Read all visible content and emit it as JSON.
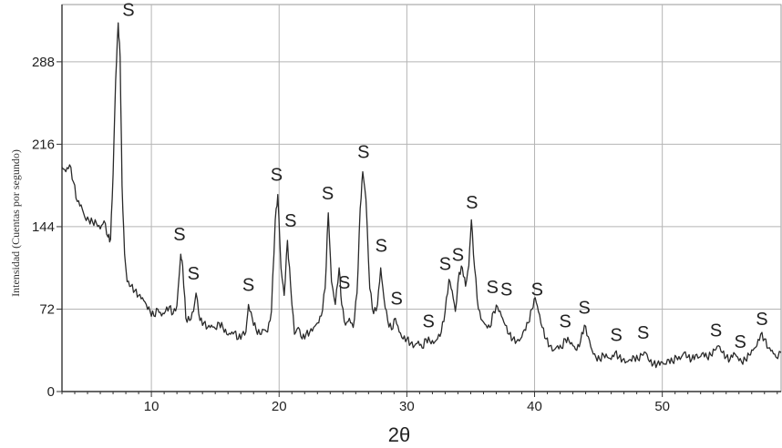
{
  "chart_data": {
    "type": "line",
    "title": "",
    "xlabel": "2θ",
    "ylabel": "Intensidad (Cuentas por segundo)",
    "xlim": [
      3,
      59.3
    ],
    "ylim": [
      0,
      338
    ],
    "grid": true,
    "x_ticks": [
      10,
      20,
      30,
      40,
      50
    ],
    "y_ticks": [
      0,
      72,
      144,
      216,
      288
    ],
    "series": [
      {
        "values": [
          [
            3.0,
            196
          ],
          [
            3.3,
            192
          ],
          [
            3.6,
            198
          ],
          [
            3.9,
            183
          ],
          [
            4.2,
            166
          ],
          [
            4.5,
            163
          ],
          [
            4.8,
            152
          ],
          [
            5.1,
            150
          ],
          [
            5.4,
            148
          ],
          [
            5.7,
            147
          ],
          [
            6.0,
            142
          ],
          [
            6.3,
            149
          ],
          [
            6.6,
            135
          ],
          [
            6.8,
            133
          ],
          [
            7.0,
            190
          ],
          [
            7.2,
            272
          ],
          [
            7.4,
            322
          ],
          [
            7.55,
            292
          ],
          [
            7.7,
            180
          ],
          [
            7.9,
            120
          ],
          [
            8.1,
            96
          ],
          [
            8.4,
            92
          ],
          [
            8.7,
            88
          ],
          [
            9.0,
            84
          ],
          [
            9.3,
            82
          ],
          [
            9.6,
            76
          ],
          [
            9.9,
            70
          ],
          [
            10.2,
            66
          ],
          [
            10.5,
            72
          ],
          [
            10.8,
            66
          ],
          [
            11.1,
            70
          ],
          [
            11.4,
            74
          ],
          [
            11.7,
            68
          ],
          [
            12.0,
            75
          ],
          [
            12.3,
            120
          ],
          [
            12.45,
            110
          ],
          [
            12.7,
            64
          ],
          [
            13.0,
            62
          ],
          [
            13.3,
            70
          ],
          [
            13.5,
            86
          ],
          [
            13.8,
            62
          ],
          [
            14.1,
            60
          ],
          [
            14.4,
            56
          ],
          [
            14.7,
            58
          ],
          [
            15.0,
            55
          ],
          [
            15.3,
            60
          ],
          [
            15.6,
            56
          ],
          [
            15.9,
            50
          ],
          [
            16.2,
            50
          ],
          [
            16.5,
            52
          ],
          [
            16.8,
            46
          ],
          [
            17.1,
            50
          ],
          [
            17.4,
            52
          ],
          [
            17.6,
            76
          ],
          [
            17.9,
            64
          ],
          [
            18.2,
            54
          ],
          [
            18.5,
            50
          ],
          [
            18.8,
            54
          ],
          [
            19.1,
            52
          ],
          [
            19.4,
            70
          ],
          [
            19.7,
            150
          ],
          [
            19.9,
            172
          ],
          [
            20.15,
            108
          ],
          [
            20.4,
            84
          ],
          [
            20.65,
            132
          ],
          [
            20.9,
            92
          ],
          [
            21.2,
            50
          ],
          [
            21.5,
            56
          ],
          [
            21.8,
            46
          ],
          [
            22.1,
            50
          ],
          [
            22.4,
            52
          ],
          [
            22.7,
            56
          ],
          [
            23.0,
            60
          ],
          [
            23.3,
            66
          ],
          [
            23.6,
            90
          ],
          [
            23.85,
            156
          ],
          [
            24.1,
            96
          ],
          [
            24.4,
            76
          ],
          [
            24.7,
            108
          ],
          [
            24.9,
            76
          ],
          [
            25.2,
            58
          ],
          [
            25.5,
            64
          ],
          [
            25.8,
            56
          ],
          [
            26.1,
            86
          ],
          [
            26.35,
            160
          ],
          [
            26.55,
            192
          ],
          [
            26.8,
            168
          ],
          [
            27.1,
            90
          ],
          [
            27.4,
            68
          ],
          [
            27.7,
            76
          ],
          [
            27.95,
            108
          ],
          [
            28.2,
            82
          ],
          [
            28.5,
            62
          ],
          [
            28.8,
            54
          ],
          [
            29.1,
            64
          ],
          [
            29.4,
            52
          ],
          [
            29.7,
            46
          ],
          [
            30.0,
            46
          ],
          [
            30.3,
            42
          ],
          [
            30.6,
            40
          ],
          [
            30.9,
            44
          ],
          [
            31.2,
            38
          ],
          [
            31.5,
            46
          ],
          [
            31.8,
            44
          ],
          [
            32.1,
            42
          ],
          [
            32.4,
            46
          ],
          [
            32.7,
            52
          ],
          [
            33.0,
            70
          ],
          [
            33.3,
            98
          ],
          [
            33.55,
            88
          ],
          [
            33.8,
            70
          ],
          [
            34.1,
            104
          ],
          [
            34.35,
            108
          ],
          [
            34.6,
            92
          ],
          [
            34.85,
            110
          ],
          [
            35.05,
            150
          ],
          [
            35.3,
            108
          ],
          [
            35.6,
            72
          ],
          [
            35.9,
            62
          ],
          [
            36.2,
            58
          ],
          [
            36.5,
            56
          ],
          [
            36.8,
            70
          ],
          [
            37.1,
            74
          ],
          [
            37.4,
            66
          ],
          [
            37.7,
            58
          ],
          [
            38.0,
            50
          ],
          [
            38.3,
            46
          ],
          [
            38.6,
            44
          ],
          [
            38.9,
            46
          ],
          [
            39.2,
            54
          ],
          [
            39.5,
            60
          ],
          [
            39.8,
            72
          ],
          [
            40.05,
            82
          ],
          [
            40.3,
            70
          ],
          [
            40.6,
            56
          ],
          [
            40.9,
            46
          ],
          [
            41.2,
            40
          ],
          [
            41.5,
            36
          ],
          [
            41.8,
            40
          ],
          [
            42.1,
            38
          ],
          [
            42.4,
            46
          ],
          [
            42.7,
            44
          ],
          [
            43.0,
            40
          ],
          [
            43.3,
            36
          ],
          [
            43.6,
            44
          ],
          [
            43.9,
            58
          ],
          [
            44.2,
            48
          ],
          [
            44.5,
            36
          ],
          [
            44.8,
            30
          ],
          [
            45.1,
            28
          ],
          [
            45.4,
            32
          ],
          [
            45.7,
            30
          ],
          [
            46.0,
            28
          ],
          [
            46.3,
            34
          ],
          [
            46.6,
            30
          ],
          [
            46.9,
            28
          ],
          [
            47.2,
            26
          ],
          [
            47.5,
            28
          ],
          [
            47.8,
            30
          ],
          [
            48.1,
            28
          ],
          [
            48.4,
            32
          ],
          [
            48.7,
            34
          ],
          [
            49.0,
            26
          ],
          [
            49.3,
            24
          ],
          [
            49.6,
            24
          ],
          [
            49.9,
            26
          ],
          [
            50.2,
            24
          ],
          [
            50.5,
            28
          ],
          [
            50.8,
            26
          ],
          [
            51.1,
            30
          ],
          [
            51.4,
            28
          ],
          [
            51.7,
            34
          ],
          [
            52.0,
            30
          ],
          [
            52.3,
            28
          ],
          [
            52.6,
            32
          ],
          [
            52.9,
            30
          ],
          [
            53.2,
            34
          ],
          [
            53.5,
            30
          ],
          [
            53.8,
            32
          ],
          [
            54.1,
            36
          ],
          [
            54.4,
            40
          ],
          [
            54.7,
            34
          ],
          [
            55.0,
            30
          ],
          [
            55.3,
            28
          ],
          [
            55.6,
            34
          ],
          [
            55.9,
            30
          ],
          [
            56.2,
            26
          ],
          [
            56.5,
            28
          ],
          [
            56.8,
            32
          ],
          [
            57.1,
            36
          ],
          [
            57.4,
            40
          ],
          [
            57.7,
            50
          ],
          [
            58.0,
            46
          ],
          [
            58.3,
            38
          ],
          [
            58.6,
            36
          ],
          [
            58.9,
            30
          ],
          [
            59.3,
            34
          ]
        ]
      }
    ],
    "annotations": [
      {
        "text": "S",
        "x": 8.2,
        "y": 328
      },
      {
        "text": "S",
        "x": 12.2,
        "y": 132
      },
      {
        "text": "S",
        "x": 13.3,
        "y": 98
      },
      {
        "text": "S",
        "x": 17.6,
        "y": 88
      },
      {
        "text": "S",
        "x": 19.8,
        "y": 184
      },
      {
        "text": "S",
        "x": 20.9,
        "y": 144
      },
      {
        "text": "S",
        "x": 23.8,
        "y": 168
      },
      {
        "text": "S",
        "x": 25.1,
        "y": 90
      },
      {
        "text": "S",
        "x": 26.6,
        "y": 204
      },
      {
        "text": "S",
        "x": 28.0,
        "y": 122
      },
      {
        "text": "S",
        "x": 29.2,
        "y": 76
      },
      {
        "text": "S",
        "x": 31.7,
        "y": 56
      },
      {
        "text": "S",
        "x": 33.0,
        "y": 106
      },
      {
        "text": "S",
        "x": 34.0,
        "y": 114
      },
      {
        "text": "S",
        "x": 35.1,
        "y": 160
      },
      {
        "text": "S",
        "x": 36.7,
        "y": 86
      },
      {
        "text": "S",
        "x": 37.8,
        "y": 84
      },
      {
        "text": "S",
        "x": 40.2,
        "y": 84
      },
      {
        "text": "S",
        "x": 42.4,
        "y": 56
      },
      {
        "text": "S",
        "x": 43.9,
        "y": 68
      },
      {
        "text": "S",
        "x": 46.4,
        "y": 44
      },
      {
        "text": "S",
        "x": 48.5,
        "y": 46
      },
      {
        "text": "S",
        "x": 54.2,
        "y": 48
      },
      {
        "text": "S",
        "x": 56.1,
        "y": 38
      },
      {
        "text": "S",
        "x": 57.8,
        "y": 58
      }
    ]
  }
}
